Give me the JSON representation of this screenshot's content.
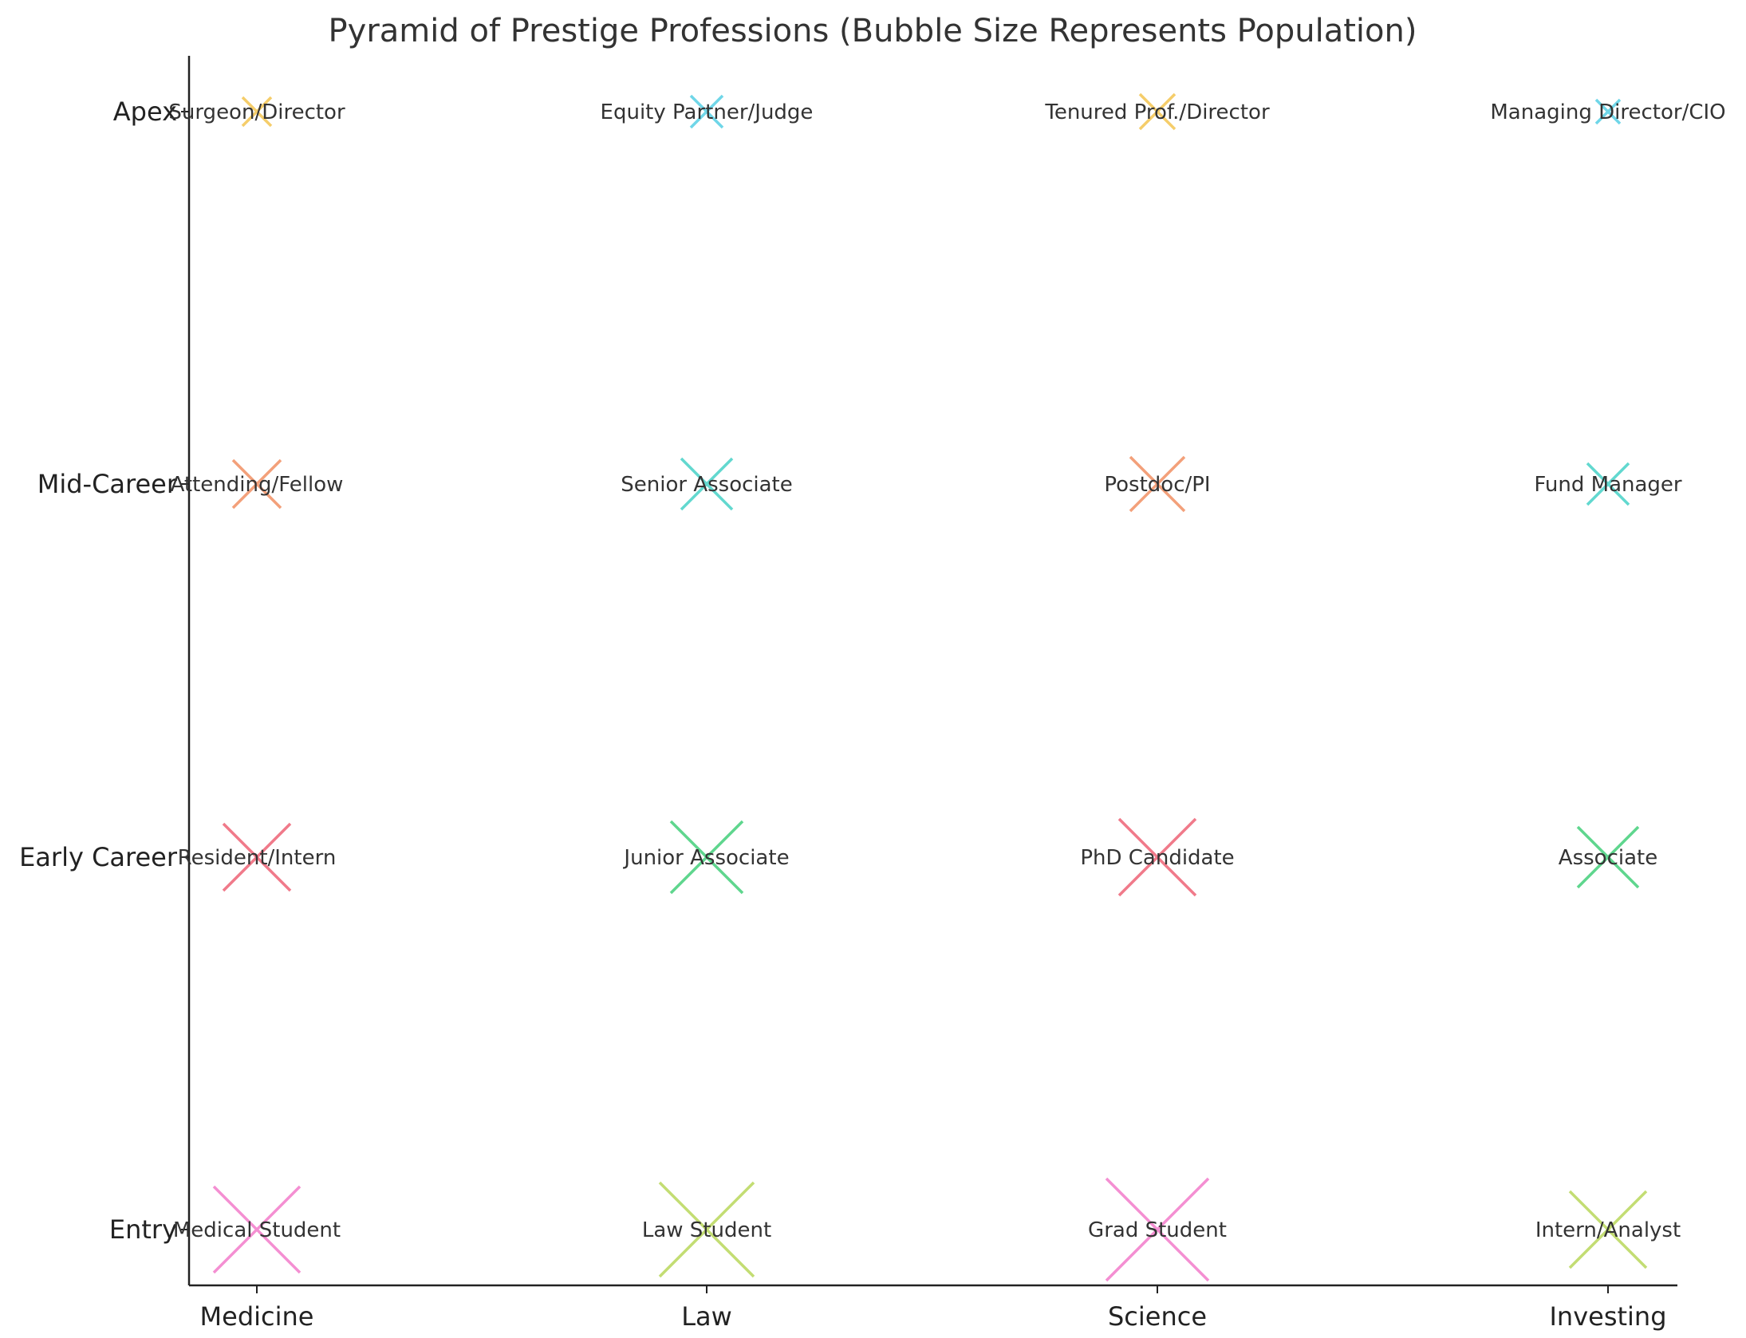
{
  "chart_data": {
    "type": "scatter",
    "title": "Pyramid of Prestige Professions (Bubble Size Represents Population)",
    "xlabel": "",
    "ylabel": "",
    "categories": [
      "Medicine",
      "Law",
      "Science",
      "Investing"
    ],
    "levels": [
      "Entry",
      "Early Career",
      "Mid-Career",
      "Apex"
    ],
    "marker": "x",
    "grid": false,
    "legend": "none",
    "level_colors": {
      "Entry": [
        "#f48fd2",
        "#c3dd73",
        "#f48fd2",
        "#c3dd73"
      ],
      "Early Career": [
        "#f07a8a",
        "#5fd68e",
        "#f07a8a",
        "#5fd68e"
      ],
      "Mid-Career": [
        "#f3a07a",
        "#62d8cf",
        "#f3a07a",
        "#62d8cf"
      ],
      "Apex": [
        "#f5cd6a",
        "#6fd6e8",
        "#f5cd6a",
        "#6fd6e8"
      ]
    },
    "points": [
      {
        "category": "Medicine",
        "level": "Entry",
        "label": "Medical Student",
        "size": 54
      },
      {
        "category": "Law",
        "level": "Entry",
        "label": "Law Student",
        "size": 59
      },
      {
        "category": "Science",
        "level": "Entry",
        "label": "Grad Student",
        "size": 64
      },
      {
        "category": "Investing",
        "level": "Entry",
        "label": "Intern/Analyst",
        "size": 48
      },
      {
        "category": "Medicine",
        "level": "Early Career",
        "label": "Resident/Intern",
        "size": 42
      },
      {
        "category": "Law",
        "level": "Early Career",
        "label": "Junior Associate",
        "size": 45
      },
      {
        "category": "Science",
        "level": "Early Career",
        "label": "PhD Candidate",
        "size": 48
      },
      {
        "category": "Investing",
        "level": "Early Career",
        "label": "Associate",
        "size": 38
      },
      {
        "category": "Medicine",
        "level": "Mid-Career",
        "label": "Attending/Fellow",
        "size": 30
      },
      {
        "category": "Law",
        "level": "Mid-Career",
        "label": "Senior Associate",
        "size": 32
      },
      {
        "category": "Science",
        "level": "Mid-Career",
        "label": "Postdoc/PI",
        "size": 34
      },
      {
        "category": "Investing",
        "level": "Mid-Career",
        "label": "Fund Manager",
        "size": 26
      },
      {
        "category": "Medicine",
        "level": "Apex",
        "label": "Surgeon/Director",
        "size": 18
      },
      {
        "category": "Law",
        "level": "Apex",
        "label": "Equity Partner/Judge",
        "size": 20
      },
      {
        "category": "Science",
        "level": "Apex",
        "label": "Tenured Prof./Director",
        "size": 22
      },
      {
        "category": "Investing",
        "level": "Apex",
        "label": "Managing Director/CIO",
        "size": 15
      }
    ]
  }
}
